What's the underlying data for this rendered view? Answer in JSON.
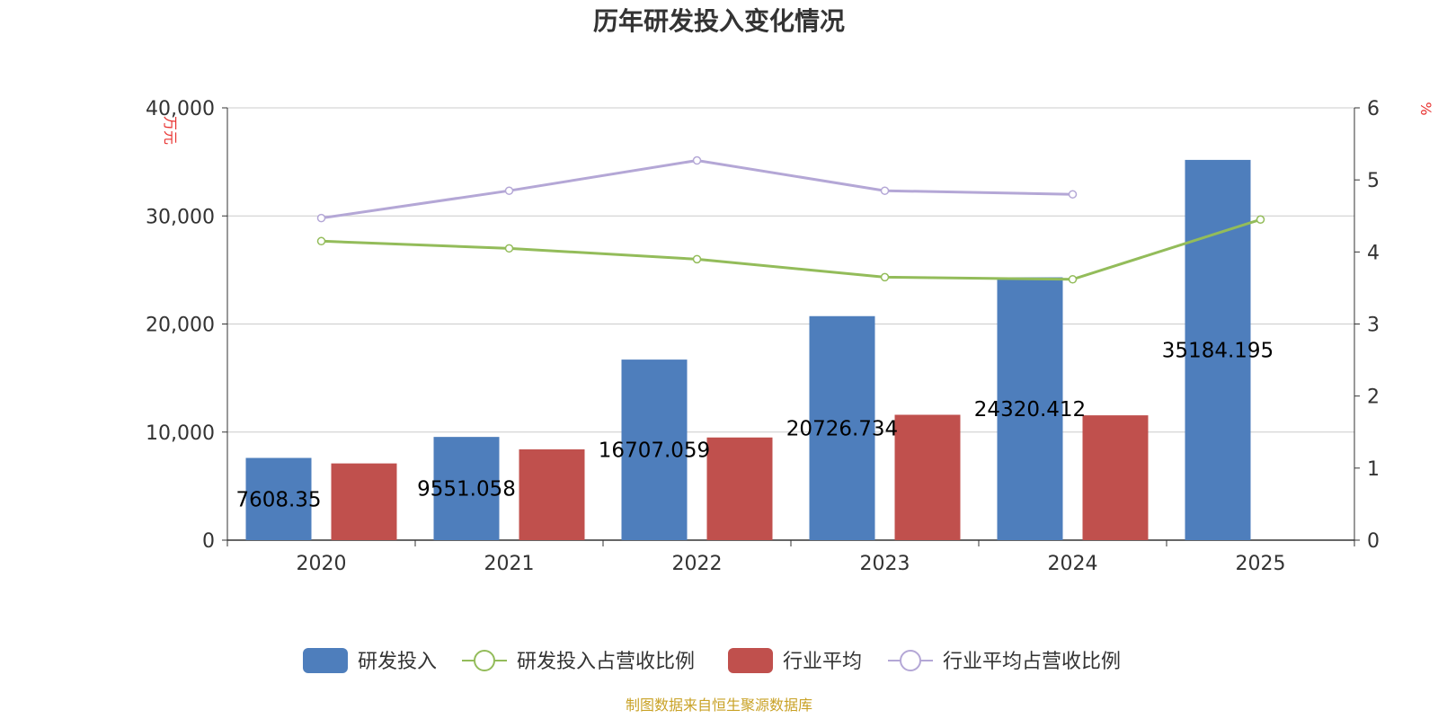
{
  "chart_data": {
    "type": "bar",
    "title": "历年研发投入变化情况",
    "categories": [
      "2020",
      "2021",
      "2022",
      "2023",
      "2024",
      "2025"
    ],
    "y_left": {
      "unit": "万元",
      "range": [
        0,
        40000
      ],
      "ticks": [
        "0",
        "10,000",
        "20,000",
        "30,000",
        "40,000"
      ],
      "tick_values": [
        0,
        10000,
        20000,
        30000,
        40000
      ]
    },
    "y_right": {
      "unit": "%",
      "range": [
        0,
        6
      ],
      "ticks": [
        "0",
        "1",
        "2",
        "3",
        "4",
        "5",
        "6"
      ],
      "tick_values": [
        0,
        1,
        2,
        3,
        4,
        5,
        6
      ]
    },
    "series": [
      {
        "name": "研发投入",
        "type": "bar",
        "axis": "left",
        "color": "#4e7ebc",
        "values": [
          7608.35,
          9551.058,
          16707.059,
          20726.734,
          24320.412,
          35184.195
        ],
        "labels": [
          "7608.35",
          "9551.058",
          "16707.059",
          "20726.734",
          "24320.412",
          "35184.195"
        ]
      },
      {
        "name": "研发投入占营收比例",
        "type": "line",
        "axis": "right",
        "color": "#93bc5a",
        "values": [
          4.15,
          4.05,
          3.9,
          3.65,
          3.62,
          4.45
        ]
      },
      {
        "name": "行业平均",
        "type": "bar",
        "axis": "left",
        "color": "#c0504d",
        "values": [
          7100,
          8400,
          9500,
          11600,
          11550,
          null
        ]
      },
      {
        "name": "行业平均占营收比例",
        "type": "line",
        "axis": "right",
        "color": "#b4a7d6",
        "values": [
          4.47,
          4.85,
          5.27,
          4.85,
          4.8,
          null
        ]
      }
    ],
    "grid": true,
    "legend_position": "bottom",
    "source": "制图数据来自恒生聚源数据库"
  }
}
